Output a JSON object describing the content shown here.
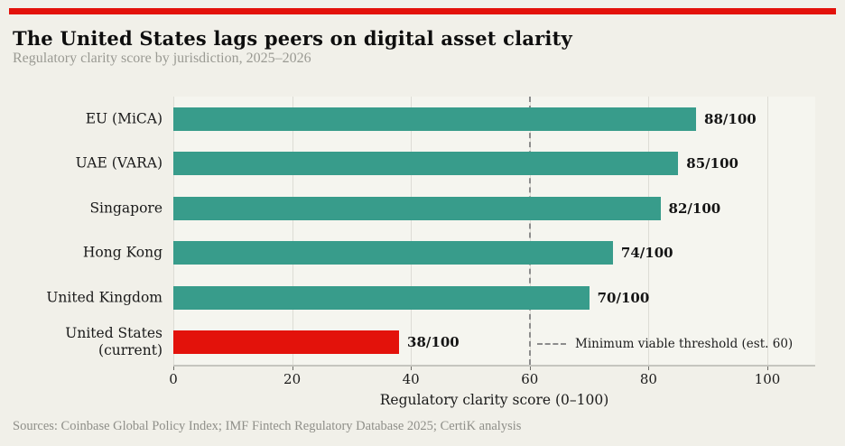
{
  "header": {
    "title": "The United States lags peers on digital asset clarity",
    "subtitle": "Regulatory clarity score by jurisdiction, 2025–2026"
  },
  "chart_data": {
    "type": "bar",
    "orientation": "horizontal",
    "title": "The United States lags peers on digital asset clarity",
    "subtitle": "Regulatory clarity score by jurisdiction, 2025–2026",
    "categories": [
      "EU (MiCA)",
      "UAE (VARA)",
      "Singapore",
      "Hong Kong",
      "United Kingdom",
      "United States\n(current)"
    ],
    "values": [
      88,
      85,
      82,
      74,
      70,
      38
    ],
    "value_labels": [
      "88/100",
      "85/100",
      "82/100",
      "74/100",
      "70/100",
      "38/100"
    ],
    "bar_colors": [
      "#389c8b",
      "#389c8b",
      "#389c8b",
      "#389c8b",
      "#389c8b",
      "#e3120b"
    ],
    "xlabel": "Regulatory clarity score (0–100)",
    "ylabel": "",
    "xlim": [
      0,
      108
    ],
    "xticks": [
      0,
      20,
      40,
      60,
      80,
      100
    ],
    "grid": true,
    "threshold": {
      "value": 60,
      "legend_label": "Minimum viable threshold (est. 60)"
    },
    "legend_position": "lower right"
  },
  "colors": {
    "accent_red": "#e3120b",
    "accent_teal": "#389c8b",
    "background": "#f1f0e9"
  },
  "footer": {
    "sources": "Sources: Coinbase Global Policy Index; IMF Fintech Regulatory Database 2025; CertiK analysis"
  }
}
